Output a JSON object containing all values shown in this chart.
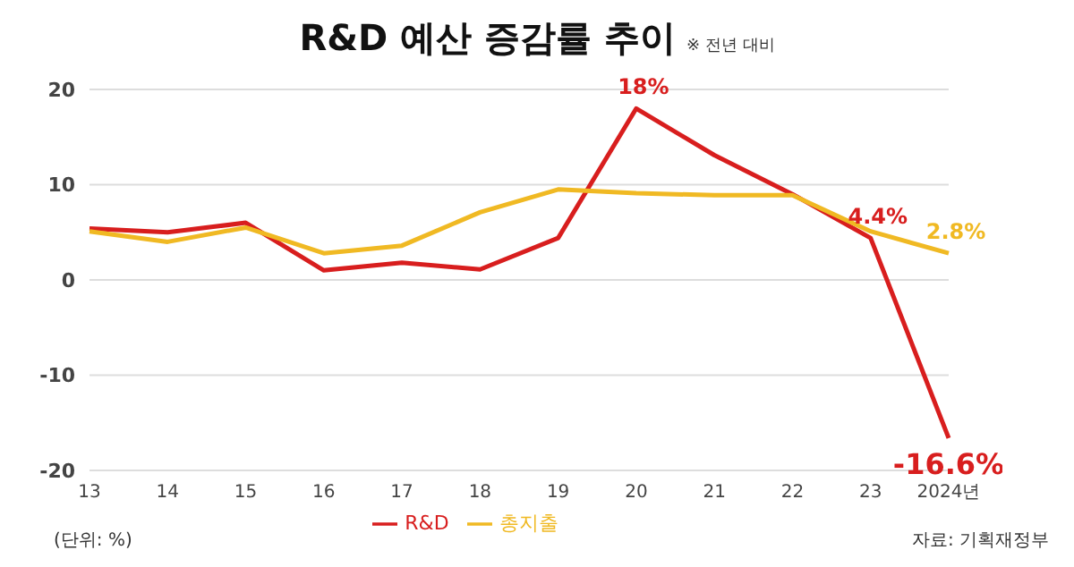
{
  "chart_data": {
    "type": "line",
    "title": "R&D 예산 증감률 추이",
    "subtitle": "※ 전년 대비",
    "categories": [
      "13",
      "14",
      "15",
      "16",
      "17",
      "18",
      "19",
      "20",
      "21",
      "22",
      "23",
      "2024년"
    ],
    "series": [
      {
        "name": "R&D",
        "color": "#d81e1e",
        "values": [
          5.4,
          5.0,
          6.0,
          1.0,
          1.8,
          1.1,
          4.4,
          18,
          13.1,
          9.0,
          4.4,
          -16.6
        ],
        "value_labels": [
          null,
          null,
          null,
          null,
          null,
          null,
          null,
          "18%",
          null,
          null,
          "4.4%",
          "-16.6%"
        ]
      },
      {
        "name": "총지출",
        "color": "#f0b923",
        "values": [
          5.1,
          4.0,
          5.5,
          2.8,
          3.6,
          7.1,
          9.5,
          9.1,
          8.9,
          8.9,
          5.1,
          2.8
        ],
        "value_labels": [
          null,
          null,
          null,
          null,
          null,
          null,
          null,
          null,
          null,
          null,
          null,
          "2.8%"
        ]
      }
    ],
    "ylim": [
      -20,
      20
    ],
    "yticks": [
      -20,
      -10,
      0,
      10,
      20
    ],
    "grid": "y",
    "legend": "bottom",
    "marker": "none",
    "line_style": "solid",
    "annotations": [
      "(단위: %)",
      "자료: 기획재정부"
    ]
  }
}
